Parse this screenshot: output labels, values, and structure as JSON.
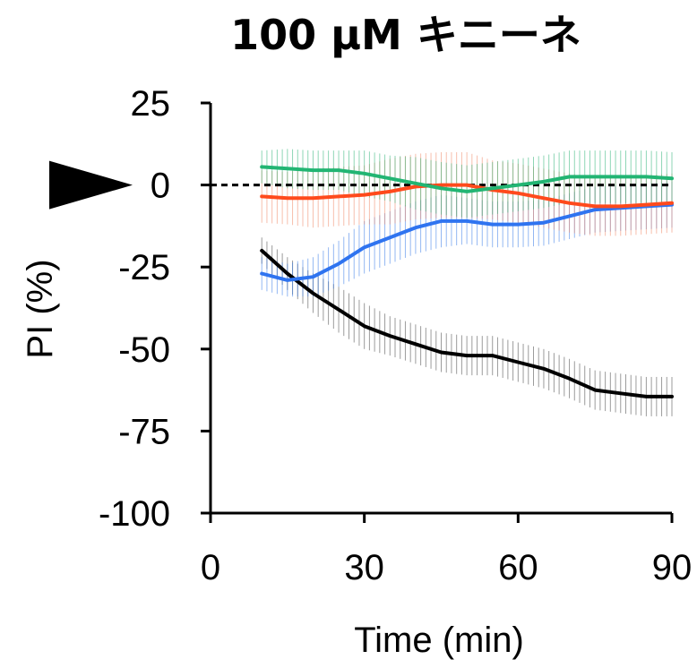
{
  "chart_data": {
    "type": "line",
    "title": "100 μM キニーネ",
    "xlabel": "Time (min)",
    "ylabel": "PI (%)",
    "xlim": [
      0,
      90
    ],
    "ylim": [
      -100,
      25
    ],
    "x_ticks": [
      0,
      30,
      60,
      90
    ],
    "y_ticks": [
      25,
      0,
      -25,
      -50,
      -75,
      -100
    ],
    "x_tick_labels": [
      "0",
      "30",
      "60",
      "90"
    ],
    "y_tick_labels": [
      "25",
      "0",
      "-25",
      "-50",
      "-75",
      "-100"
    ],
    "reference_line": {
      "y": 0,
      "style": "dashed"
    },
    "marker": {
      "shape": "arrowhead",
      "points_at_y": 0
    },
    "error_bars": true,
    "legend": "none",
    "series": [
      {
        "color": "#000000",
        "error_color": "#4a4a4a",
        "x": [
          10,
          15,
          20,
          25,
          30,
          35,
          40,
          45,
          50,
          55,
          60,
          65,
          70,
          75,
          80,
          85,
          90
        ],
        "y": [
          -20,
          -27,
          -33,
          -38,
          -43,
          -46,
          -48.5,
          -51,
          -52,
          -52,
          -54,
          -56,
          -59,
          -62.5,
          -63.5,
          -64.5,
          -64.5
        ],
        "error": [
          4,
          5,
          6,
          7,
          7,
          6,
          6,
          6,
          6,
          6,
          6,
          6,
          6,
          6,
          6,
          6,
          6
        ]
      },
      {
        "color": "#2f74f0",
        "error_color": "#3c7ee8",
        "x": [
          10,
          15,
          20,
          25,
          30,
          35,
          40,
          45,
          50,
          55,
          60,
          65,
          70,
          75,
          80,
          85,
          90
        ],
        "y": [
          -27,
          -29,
          -28,
          -24,
          -19,
          -16,
          -13,
          -11,
          -11,
          -12,
          -12,
          -11.5,
          -9.5,
          -7.5,
          -7,
          -6.5,
          -6
        ],
        "error": [
          5,
          5,
          6,
          7,
          8,
          8,
          8,
          8,
          7,
          7,
          7,
          7,
          7,
          7,
          7,
          7,
          7
        ]
      },
      {
        "color": "#ff4a1c",
        "error_color": "#f08a6a",
        "x": [
          10,
          15,
          20,
          25,
          30,
          35,
          40,
          45,
          50,
          55,
          60,
          65,
          70,
          75,
          80,
          85,
          90
        ],
        "y": [
          -3.5,
          -4,
          -4,
          -3.5,
          -3,
          -2,
          -0.5,
          0,
          0,
          -1.5,
          -2.5,
          -4,
          -5.5,
          -6.5,
          -6.5,
          -6,
          -5.5
        ],
        "error": [
          8,
          8,
          9,
          9,
          9,
          10,
          10,
          10,
          10,
          9,
          9,
          9,
          9,
          9,
          9,
          9,
          9
        ]
      },
      {
        "color": "#22b573",
        "error_color": "#33b57a",
        "x": [
          10,
          15,
          20,
          25,
          30,
          35,
          40,
          45,
          50,
          55,
          60,
          65,
          70,
          75,
          80,
          85,
          90
        ],
        "y": [
          5.5,
          5,
          4.5,
          4.5,
          3.5,
          2,
          0.5,
          -1,
          -2,
          -1,
          0,
          1,
          2.5,
          2.5,
          2.5,
          2.5,
          2
        ],
        "error": [
          5,
          6,
          6,
          6,
          7,
          7,
          8,
          8,
          8,
          8,
          8,
          8,
          8,
          8,
          8,
          8,
          8
        ]
      }
    ]
  }
}
